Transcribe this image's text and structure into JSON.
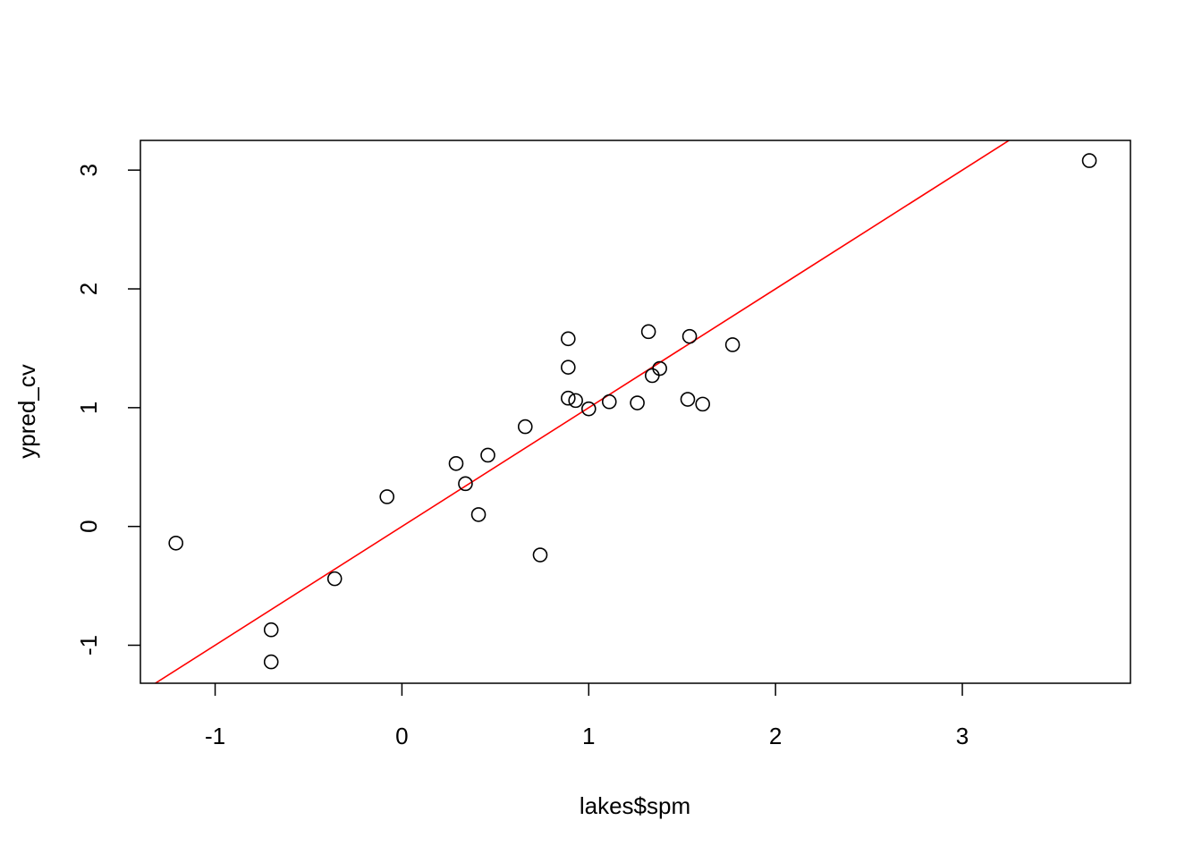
{
  "colors": {
    "points": "#000000",
    "reference_line": "#ff0000",
    "axes": "#000000",
    "background": "#ffffff"
  },
  "chart_data": {
    "type": "scatter",
    "title": "",
    "xlabel": "lakes$spm",
    "ylabel": "ypred_cv",
    "xlim": [
      -1.4,
      3.9
    ],
    "ylim": [
      -1.32,
      3.25
    ],
    "x_ticks": [
      -1,
      0,
      1,
      2,
      3
    ],
    "y_ticks": [
      -1,
      0,
      1,
      2,
      3
    ],
    "x_tick_labels": [
      "-1",
      "0",
      "1",
      "2",
      "3"
    ],
    "y_tick_labels": [
      "-1",
      "0",
      "1",
      "2",
      "3"
    ],
    "grid": false,
    "legend": "none",
    "point_style": "open-circle",
    "reference_line": {
      "intercept": 0,
      "slope": 1,
      "color": "#ff0000"
    },
    "points": [
      {
        "x": -1.21,
        "y": -0.14
      },
      {
        "x": -0.7,
        "y": -0.87
      },
      {
        "x": -0.7,
        "y": -1.14
      },
      {
        "x": -0.36,
        "y": -0.44
      },
      {
        "x": -0.08,
        "y": 0.25
      },
      {
        "x": 0.29,
        "y": 0.53
      },
      {
        "x": 0.34,
        "y": 0.36
      },
      {
        "x": 0.41,
        "y": 0.1
      },
      {
        "x": 0.46,
        "y": 0.6
      },
      {
        "x": 0.66,
        "y": 0.84
      },
      {
        "x": 0.74,
        "y": -0.24
      },
      {
        "x": 0.89,
        "y": 1.58
      },
      {
        "x": 0.89,
        "y": 1.34
      },
      {
        "x": 0.89,
        "y": 1.08
      },
      {
        "x": 0.93,
        "y": 1.06
      },
      {
        "x": 1.0,
        "y": 0.99
      },
      {
        "x": 1.11,
        "y": 1.05
      },
      {
        "x": 1.26,
        "y": 1.04
      },
      {
        "x": 1.32,
        "y": 1.64
      },
      {
        "x": 1.34,
        "y": 1.27
      },
      {
        "x": 1.38,
        "y": 1.33
      },
      {
        "x": 1.53,
        "y": 1.07
      },
      {
        "x": 1.54,
        "y": 1.6
      },
      {
        "x": 1.61,
        "y": 1.03
      },
      {
        "x": 1.77,
        "y": 1.53
      },
      {
        "x": 3.68,
        "y": 3.08
      }
    ]
  }
}
